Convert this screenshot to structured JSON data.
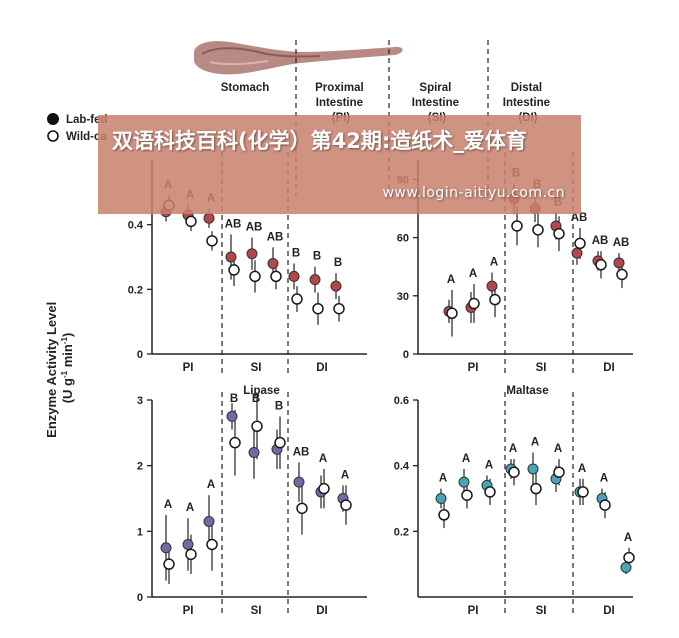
{
  "regions": [
    {
      "label_lines": [
        "Stomach"
      ]
    },
    {
      "label_lines": [
        "Proximal",
        "Intestine",
        "(PI)"
      ]
    },
    {
      "label_lines": [
        "Spiral",
        "Intestine",
        "(SI)"
      ]
    },
    {
      "label_lines": [
        "Distal",
        "Intestine",
        "(DI)"
      ]
    }
  ],
  "legend": {
    "lab_fed": "Lab-fed",
    "wild_caught": "Wild-ca"
  },
  "y_axis_label_line1": "Enzyme Activity Level",
  "y_axis_label_line2": "(U g",
  "y_axis_label_sup1": "-1",
  "y_axis_label_mid": " min",
  "y_axis_label_sup2": "-1",
  "y_axis_label_end": ")",
  "banner": {
    "title": "双语科技百科(化学）第42期:造纸术_爱体育",
    "url": "www.login-aitiyu.com.cn"
  },
  "colors": {
    "wild": "#ffffff",
    "outline": "#1a1a1a"
  },
  "chart_data": [
    {
      "type": "scatter",
      "panel": "top-left",
      "title": "",
      "ylim": [
        0,
        0.6
      ],
      "yticks": [
        0,
        0.2,
        0.4
      ],
      "ytick_labels": [
        "0",
        "0.2",
        "0.4"
      ],
      "categories": [
        "PI",
        "SI",
        "DI"
      ],
      "color": "#b5464a",
      "letters": [
        "A",
        "A",
        "A",
        "AB",
        "AB",
        "AB",
        "B",
        "B",
        "B"
      ],
      "lab_fed": [
        0.44,
        0.43,
        0.42,
        0.3,
        0.31,
        0.28,
        0.24,
        0.23,
        0.21
      ],
      "lab_fed_err": [
        0.03,
        0.03,
        0.03,
        0.07,
        0.05,
        0.05,
        0.04,
        0.04,
        0.04
      ],
      "wild": [
        0.46,
        0.41,
        0.35,
        0.26,
        0.24,
        0.24,
        0.17,
        0.14,
        0.14
      ],
      "wild_err": [
        0.03,
        0.03,
        0.03,
        0.05,
        0.05,
        0.04,
        0.04,
        0.05,
        0.04
      ]
    },
    {
      "type": "scatter",
      "panel": "top-right",
      "title": "",
      "ylim": [
        0,
        100
      ],
      "yticks": [
        0,
        30,
        60,
        90
      ],
      "ytick_labels": [
        "0",
        "30",
        "60",
        "90"
      ],
      "categories": [
        "PI",
        "SI",
        "DI"
      ],
      "color": "#b5464a",
      "letters": [
        "A",
        "A",
        "A",
        "B",
        "B",
        "B",
        "AB",
        "AB",
        "AB"
      ],
      "lab_fed": [
        22,
        24,
        35,
        80,
        75,
        66,
        52,
        48,
        47
      ],
      "lab_fed_err": [
        6,
        8,
        7,
        8,
        7,
        7,
        6,
        5,
        5
      ],
      "wild": [
        21,
        26,
        28,
        66,
        64,
        62,
        57,
        46,
        41
      ],
      "wild_err": [
        12,
        10,
        9,
        10,
        9,
        9,
        8,
        7,
        7
      ]
    },
    {
      "type": "scatter",
      "panel": "bottom-left",
      "title": "Lipase",
      "ylim": [
        0,
        3
      ],
      "yticks": [
        0,
        1,
        2,
        3
      ],
      "ytick_labels": [
        "0",
        "1",
        "2",
        "3"
      ],
      "categories": [
        "PI",
        "SI",
        "DI"
      ],
      "color": "#7a65a6",
      "letters": [
        "A",
        "A",
        "A",
        "B",
        "B",
        "B",
        "AB",
        "A",
        "A"
      ],
      "lab_fed": [
        0.75,
        0.8,
        1.15,
        2.75,
        2.2,
        2.25,
        1.75,
        1.6,
        1.5
      ],
      "lab_fed_err": [
        0.5,
        0.4,
        0.4,
        0.2,
        0.4,
        0.3,
        0.3,
        0.25,
        0.2
      ],
      "wild": [
        0.5,
        0.65,
        0.8,
        2.35,
        2.6,
        2.35,
        1.35,
        1.65,
        1.4
      ],
      "wild_err": [
        0.3,
        0.3,
        0.4,
        0.5,
        0.5,
        0.4,
        0.4,
        0.3,
        0.3
      ]
    },
    {
      "type": "scatter",
      "panel": "bottom-right",
      "title": "Maltase",
      "ylim": [
        0,
        0.6
      ],
      "yticks": [
        0.2,
        0.4,
        0.6
      ],
      "ytick_labels": [
        "0.2",
        "0.4",
        "0.6"
      ],
      "categories": [
        "PI",
        "SI",
        "DI"
      ],
      "color": "#45a6b8",
      "letters": [
        "A",
        "A",
        "A",
        "A",
        "A",
        "A",
        "A",
        "A",
        "A"
      ],
      "lab_fed": [
        0.3,
        0.35,
        0.34,
        0.39,
        0.39,
        0.36,
        0.32,
        0.3,
        0.09
      ],
      "lab_fed_err": [
        0.03,
        0.04,
        0.03,
        0.03,
        0.05,
        0.04,
        0.04,
        0.03,
        0.02
      ],
      "wild": [
        0.25,
        0.31,
        0.32,
        0.38,
        0.33,
        0.38,
        0.32,
        0.28,
        0.12
      ],
      "wild_err": [
        0.04,
        0.04,
        0.04,
        0.04,
        0.05,
        0.04,
        0.04,
        0.04,
        0.03
      ]
    }
  ]
}
